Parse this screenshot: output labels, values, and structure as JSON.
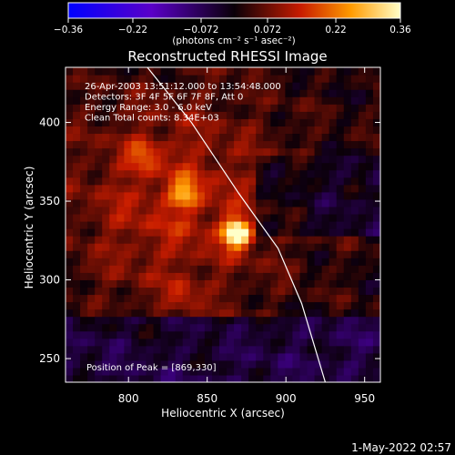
{
  "chart_data": {
    "type": "heatmap",
    "title": "Reconstructed RHESSI Image",
    "xlabel": "Heliocentric X (arcsec)",
    "ylabel": "Heliocentric Y (arcsec)",
    "xlim": [
      760,
      960
    ],
    "ylim": [
      235,
      435
    ],
    "x_ticks": [
      800,
      850,
      900,
      950
    ],
    "y_ticks": [
      250,
      300,
      350,
      400
    ],
    "x_tick_labels": [
      "800",
      "850",
      "900",
      "950"
    ],
    "y_tick_labels": [
      "250",
      "300",
      "350",
      "400"
    ],
    "colorbar": {
      "range": [
        -0.36,
        0.36
      ],
      "ticks": [
        -0.36,
        -0.22,
        -0.072,
        0.072,
        0.22,
        0.36
      ],
      "tick_labels": [
        "−0.36",
        "−0.22",
        "−0.072",
        "0.072",
        "0.22",
        "0.36"
      ],
      "unit_label": "(photons cm⁻² s⁻¹ asec⁻²)"
    },
    "annotations": [
      "26-Apr-2003 13:51:12.000 to 13:54:48.000",
      "Detectors: 3F 4F 5F 6F 7F 8F, Att 0",
      "Energy Range: 3.0 - 6.0 keV",
      "Clean     Total counts: 8.34E+03"
    ],
    "peak_label": "Position of Peak = [869,330]",
    "peak": {
      "x": 869,
      "y": 330,
      "value": 0.36
    },
    "secondary_sources": [
      {
        "x": 836,
        "y": 355,
        "value": 0.16
      },
      {
        "x": 810,
        "y": 380,
        "value": 0.1
      },
      {
        "x": 835,
        "y": 290,
        "value": 0.08
      }
    ],
    "limb_curve": [
      [
        812,
        435
      ],
      [
        840,
        400
      ],
      [
        870,
        355
      ],
      [
        895,
        320
      ],
      [
        910,
        285
      ],
      [
        925,
        235
      ]
    ],
    "grid": false,
    "legend": "none"
  },
  "footer": {
    "date_stamp": "1-May-2022 02:57"
  }
}
